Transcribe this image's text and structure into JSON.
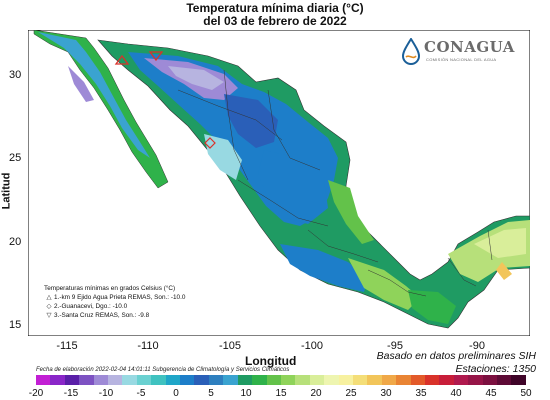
{
  "title": {
    "line1": "Temperatura mínima diaria (°C)",
    "line2": "del 03 de febrero de 2022"
  },
  "logo": {
    "name": "CONAGUA",
    "subtitle": "COMISIÓN NACIONAL DEL AGUA",
    "icon": "water-drop-logo"
  },
  "axes": {
    "xlabel": "Longitud",
    "ylabel": "Latitud",
    "xticks": [
      "-115",
      "-110",
      "-105",
      "-100",
      "-95",
      "-90"
    ],
    "yticks": [
      "30",
      "25",
      "20",
      "15"
    ]
  },
  "legend": {
    "title": "Temperaturas mínimas en grados Celsius (°C)",
    "items": [
      {
        "symbol": "△",
        "text": "1.-km 9 Ejido Agua Prieta REMAS, Son.: -10.0"
      },
      {
        "symbol": "◇",
        "text": "2.-Guanacevi, Dgo.: -10.0"
      },
      {
        "symbol": "▽",
        "text": "3.-Santa Cruz REMAS, Son.: -9.8"
      }
    ]
  },
  "source": "Basado en datos preliminares SIH",
  "stations": "Estaciones:  1350",
  "footnote": "Fecha de elaboración 2022-02-04 14:01:11 Subgerencia de Climatología y Servicios Climáticos",
  "colorbar": {
    "labels": [
      "-20",
      "-15",
      "-10",
      "-5",
      "0",
      "5",
      "10",
      "15",
      "20",
      "25",
      "30",
      "35",
      "40",
      "45",
      "50"
    ],
    "colors": [
      "#c21fd4",
      "#8a26c8",
      "#5a1fa8",
      "#7d52c2",
      "#9e8ad6",
      "#b7b4e0",
      "#98d9e2",
      "#6ad1d1",
      "#3fc2c0",
      "#1fa6c8",
      "#1d7ec9",
      "#2a5fb8",
      "#2e7fbf",
      "#3aa3d0",
      "#1f9b63",
      "#2fb24a",
      "#63c24a",
      "#8fd35a",
      "#b7e07a",
      "#d9ee9a",
      "#eef5b0",
      "#f7f1a0",
      "#f4de78",
      "#f2c55a",
      "#f0a848",
      "#e98434",
      "#e35a2a",
      "#d9322a",
      "#c81e3a",
      "#b01a4e",
      "#961548",
      "#7c1040",
      "#5e0a36",
      "#3f0428"
    ]
  },
  "map_features": {
    "region": "México",
    "extent_lon": [
      -118,
      -86
    ],
    "extent_lat": [
      14,
      33
    ],
    "notable_colors": {
      "ocean": "#ffffff",
      "land_cold": "#2e7fbf",
      "land_mild": "#b7e07a",
      "us_outside": "#ffffff"
    }
  }
}
